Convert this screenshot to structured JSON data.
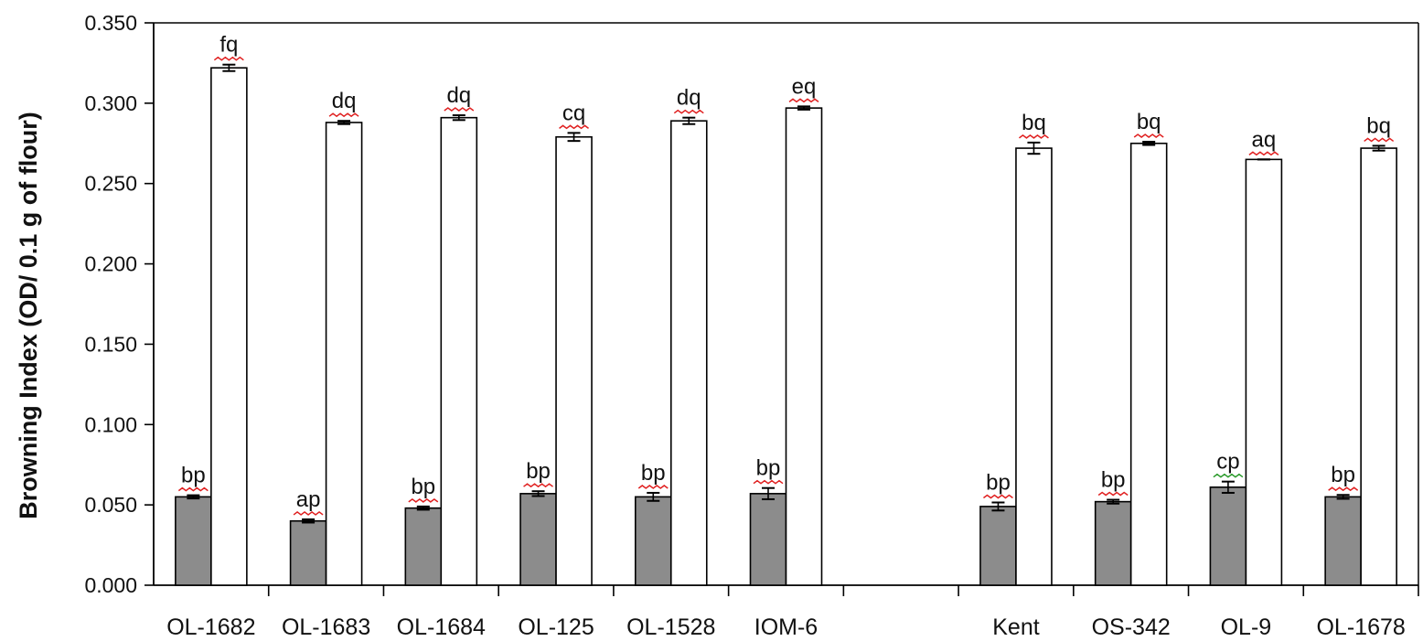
{
  "chart_data": {
    "type": "bar",
    "title": "",
    "xlabel": "",
    "ylabel": "Browning Index (OD/ 0.1 g of flour)",
    "ylim": [
      0,
      0.35
    ],
    "yticks": [
      "0.000",
      "0.050",
      "0.100",
      "0.150",
      "0.200",
      "0.250",
      "0.300",
      "0.350"
    ],
    "grid": false,
    "legend": "none",
    "colors": {
      "series1": "#8c8c8c",
      "series2": "#ffffff",
      "stroke": "#000000",
      "squiggle_red": "#e02020",
      "squiggle_green": "#2a9a2a"
    },
    "groups": [
      {
        "slot": 0,
        "label": "OL-1682"
      },
      {
        "slot": 1,
        "label": "OL-1683"
      },
      {
        "slot": 2,
        "label": "OL-1684"
      },
      {
        "slot": 3,
        "label": "OL-125"
      },
      {
        "slot": 4,
        "label": "OL-1528"
      },
      {
        "slot": 5,
        "label": "IOM-6"
      },
      {
        "slot": 6,
        "label": ""
      },
      {
        "slot": 7,
        "label": "Kent"
      },
      {
        "slot": 8,
        "label": "OS-342"
      },
      {
        "slot": 9,
        "label": "OL-9"
      },
      {
        "slot": 10,
        "label": "OL-1678"
      }
    ],
    "series": [
      {
        "fill": "gray",
        "values": [
          0.055,
          0.04,
          0.048,
          0.057,
          0.055,
          0.057,
          0.049,
          0.052,
          0.061,
          0.055
        ],
        "errors": [
          0.001,
          0.001,
          0.001,
          0.0015,
          0.0025,
          0.0035,
          0.0025,
          0.0012,
          0.0035,
          0.0012
        ],
        "labels": [
          "bp",
          "ap",
          "bp",
          "bp",
          "bp",
          "bp",
          "bp",
          "bp",
          "cp",
          "bp"
        ]
      },
      {
        "fill": "white",
        "values": [
          0.322,
          0.288,
          0.291,
          0.279,
          0.289,
          0.297,
          0.272,
          0.275,
          0.265,
          0.272
        ],
        "errors": [
          0.002,
          0.001,
          0.0015,
          0.0025,
          0.002,
          0.001,
          0.0035,
          0.001,
          0.0,
          0.0015
        ],
        "labels": [
          "fq",
          "dq",
          "dq",
          "cq",
          "dq",
          "eq",
          "bq",
          "bq",
          "aq",
          "bq"
        ]
      }
    ]
  }
}
